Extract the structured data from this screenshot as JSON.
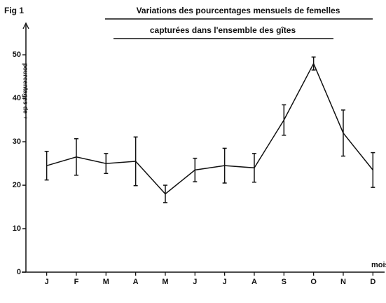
{
  "chart_data": {
    "type": "line",
    "figure_label": "Fig 1",
    "title": [
      "Variations des pourcentages mensuels de femelles",
      "capturées dans l'ensemble des gîtes"
    ],
    "y_label": "pourcentages de ♀",
    "x_label": "mois",
    "categories": [
      "J",
      "F",
      "M",
      "A",
      "M",
      "J",
      "J",
      "A",
      "S",
      "O",
      "N",
      "D"
    ],
    "values": [
      24.5,
      26.5,
      25,
      25.5,
      18,
      23.5,
      24.5,
      24,
      35,
      48,
      32,
      23.5
    ],
    "errors": [
      3.3,
      4.2,
      2.3,
      5.6,
      2,
      2.7,
      4,
      3.3,
      3.5,
      1.5,
      5.3,
      4
    ],
    "color": "#111111",
    "ylim": [
      0,
      56
    ],
    "yticks": [
      0,
      10,
      20,
      30,
      40,
      50
    ]
  }
}
